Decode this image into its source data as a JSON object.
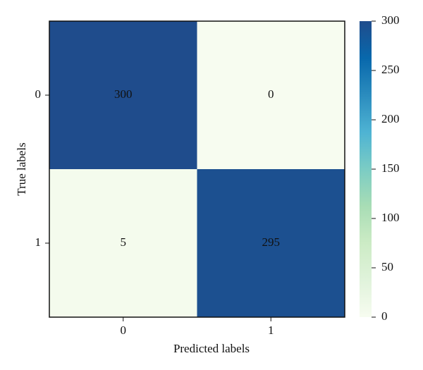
{
  "chart_data": {
    "type": "heatmap",
    "xlabel": "Predicted labels",
    "ylabel": "True labels",
    "x_categories": [
      "0",
      "1"
    ],
    "y_categories": [
      "0",
      "1"
    ],
    "values": [
      [
        300,
        0
      ],
      [
        5,
        295
      ]
    ],
    "colorscale": [
      "#f7fcf0",
      "#e0f3db",
      "#ccebc5",
      "#a8ddb5",
      "#7bccc4",
      "#4eb3d3",
      "#2b8cbe",
      "#0868ac",
      "#1f4c8c"
    ],
    "zlim": [
      0,
      300
    ],
    "zticks": [
      0,
      50,
      100,
      150,
      200,
      250,
      300
    ]
  }
}
